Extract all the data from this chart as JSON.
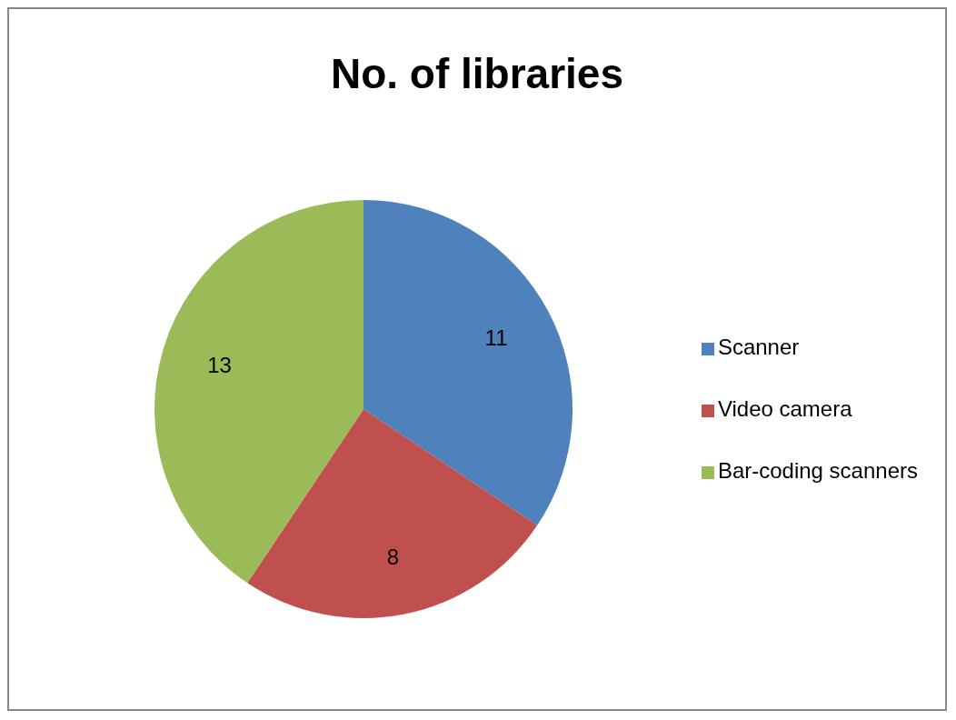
{
  "chart_data": {
    "type": "pie",
    "title": "No. of libraries",
    "categories": [
      "Scanner",
      "Video camera",
      "Bar-coding scanners"
    ],
    "values": [
      11,
      8,
      13
    ],
    "colors": [
      "#4f81bd",
      "#c0504d",
      "#9bbb59"
    ],
    "data_labels": true,
    "legend": "right"
  }
}
